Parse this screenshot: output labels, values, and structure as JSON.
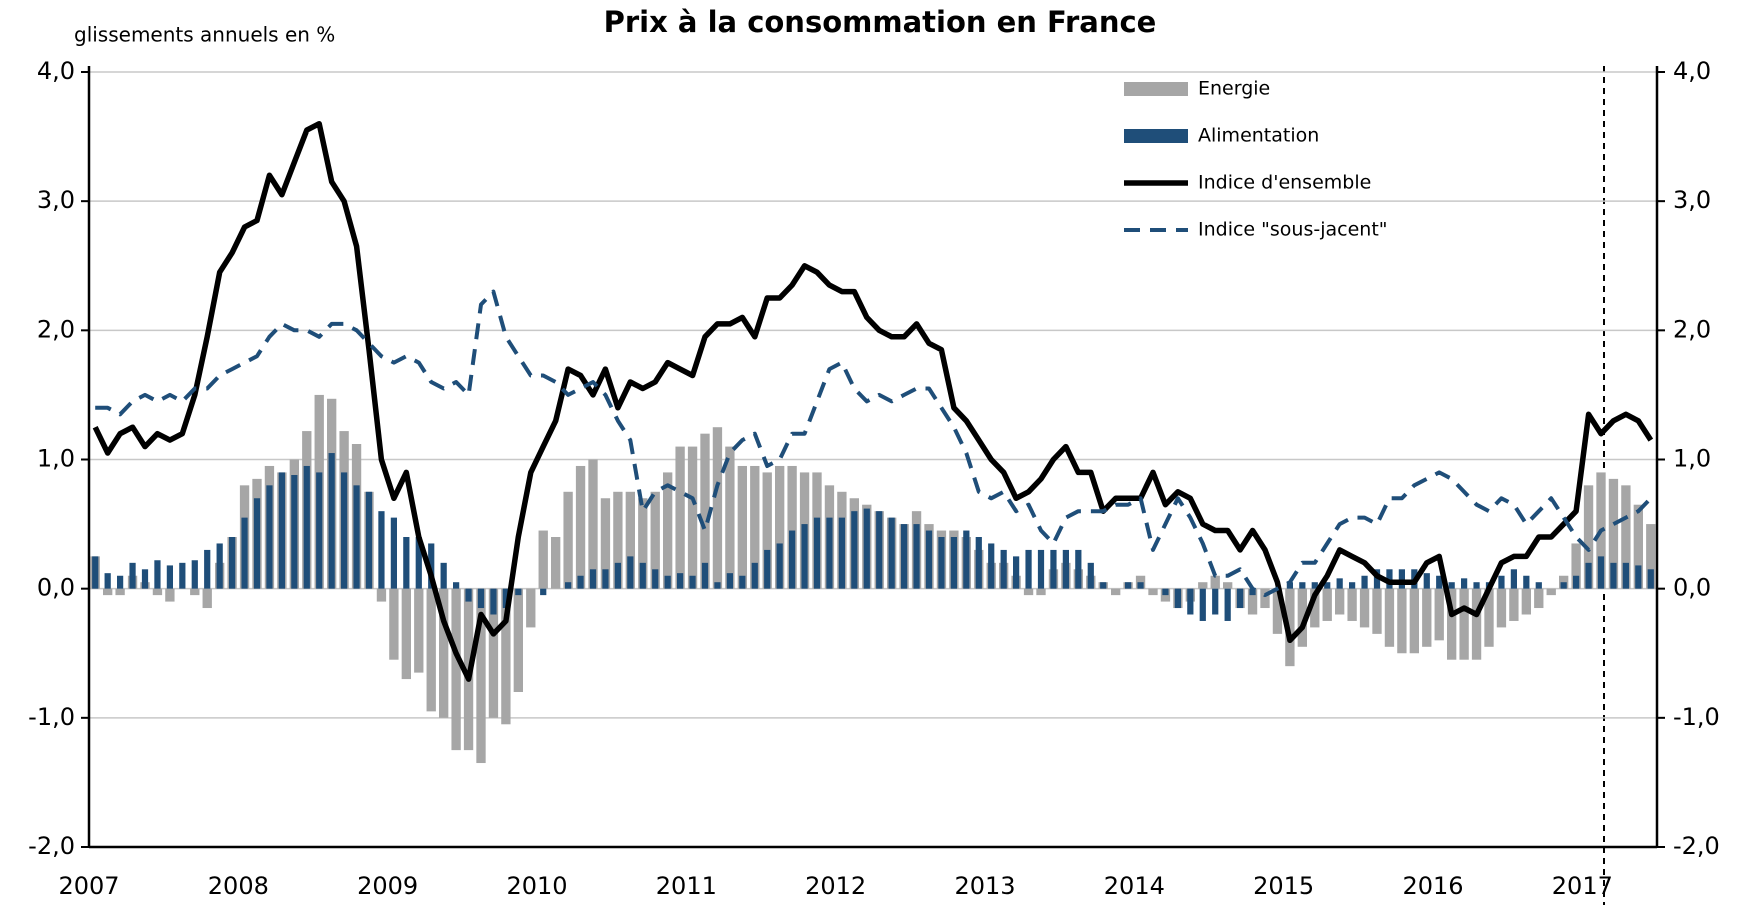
{
  "chart_data": {
    "type": "bar-line",
    "title": "Prix à la consommation en France",
    "y_label": "glissements annuels en %",
    "categories": [
      "2007",
      null,
      null,
      null,
      null,
      null,
      null,
      null,
      null,
      null,
      null,
      null,
      "2008",
      null,
      null,
      null,
      null,
      null,
      null,
      null,
      null,
      null,
      null,
      null,
      "2009",
      null,
      null,
      null,
      null,
      null,
      null,
      null,
      null,
      null,
      null,
      null,
      "2010",
      null,
      null,
      null,
      null,
      null,
      null,
      null,
      null,
      null,
      null,
      null,
      "2011",
      null,
      null,
      null,
      null,
      null,
      null,
      null,
      null,
      null,
      null,
      null,
      "2012",
      null,
      null,
      null,
      null,
      null,
      null,
      null,
      null,
      null,
      null,
      null,
      "2013",
      null,
      null,
      null,
      null,
      null,
      null,
      null,
      null,
      null,
      null,
      null,
      "2014",
      null,
      null,
      null,
      null,
      null,
      null,
      null,
      null,
      null,
      null,
      null,
      "2015",
      null,
      null,
      null,
      null,
      null,
      null,
      null,
      null,
      null,
      null,
      null,
      "2016",
      null,
      null,
      null,
      null,
      null,
      null,
      null,
      null,
      null,
      null,
      null,
      "2017",
      null,
      null,
      null,
      null,
      null
    ],
    "series": [
      {
        "name": "Energie",
        "type": "bar",
        "color": "#a6a6a6",
        "values": [
          0.25,
          -0.05,
          -0.05,
          0.1,
          0.05,
          -0.05,
          -0.1,
          0.0,
          -0.05,
          -0.15,
          0.2,
          0.4,
          0.8,
          0.85,
          0.95,
          0.9,
          1.0,
          1.22,
          1.5,
          1.47,
          1.22,
          1.12,
          0.75,
          -0.1,
          -0.55,
          -0.7,
          -0.65,
          -0.95,
          -1.0,
          -1.25,
          -1.25,
          -1.35,
          -1.0,
          -1.05,
          -0.8,
          -0.3,
          0.45,
          0.4,
          0.75,
          0.95,
          1.0,
          0.7,
          0.75,
          0.75,
          0.7,
          0.75,
          0.9,
          1.1,
          1.1,
          1.2,
          1.25,
          1.1,
          0.95,
          0.95,
          0.9,
          0.95,
          0.95,
          0.9,
          0.9,
          0.8,
          0.75,
          0.7,
          0.65,
          0.6,
          0.55,
          0.5,
          0.6,
          0.5,
          0.45,
          0.45,
          0.4,
          0.3,
          0.2,
          0.2,
          0.1,
          -0.05,
          -0.05,
          0.15,
          0.2,
          0.15,
          0.1,
          0.05,
          -0.05,
          0.05,
          0.1,
          -0.05,
          -0.1,
          -0.15,
          -0.1,
          0.05,
          0.1,
          0.05,
          -0.15,
          -0.2,
          -0.15,
          -0.35,
          -0.6,
          -0.45,
          -0.3,
          -0.25,
          -0.2,
          -0.25,
          -0.3,
          -0.35,
          -0.45,
          -0.5,
          -0.5,
          -0.45,
          -0.4,
          -0.55,
          -0.55,
          -0.55,
          -0.45,
          -0.3,
          -0.25,
          -0.2,
          -0.15,
          -0.05,
          0.1,
          0.35,
          0.8,
          0.9,
          0.85,
          0.8,
          0.65,
          0.5
        ]
      },
      {
        "name": "Alimentation",
        "type": "bar",
        "color": "#1f4e79",
        "values": [
          0.25,
          0.12,
          0.1,
          0.2,
          0.15,
          0.22,
          0.18,
          0.2,
          0.22,
          0.3,
          0.35,
          0.4,
          0.55,
          0.7,
          0.8,
          0.9,
          0.88,
          0.95,
          0.9,
          1.05,
          0.9,
          0.8,
          0.75,
          0.6,
          0.55,
          0.4,
          0.4,
          0.35,
          0.2,
          0.05,
          -0.1,
          -0.15,
          -0.2,
          -0.15,
          -0.05,
          0.0,
          -0.05,
          0.0,
          0.05,
          0.1,
          0.15,
          0.15,
          0.2,
          0.25,
          0.2,
          0.15,
          0.1,
          0.12,
          0.1,
          0.2,
          0.05,
          0.12,
          0.1,
          0.2,
          0.3,
          0.35,
          0.45,
          0.5,
          0.55,
          0.55,
          0.55,
          0.6,
          0.62,
          0.6,
          0.55,
          0.5,
          0.5,
          0.45,
          0.4,
          0.4,
          0.45,
          0.4,
          0.35,
          0.3,
          0.25,
          0.3,
          0.3,
          0.3,
          0.3,
          0.3,
          0.2,
          0.05,
          0.0,
          0.05,
          0.05,
          0.0,
          -0.05,
          -0.15,
          -0.2,
          -0.25,
          -0.2,
          -0.25,
          -0.15,
          -0.05,
          0.0,
          0.0,
          0.05,
          0.05,
          0.05,
          0.05,
          0.08,
          0.05,
          0.1,
          0.15,
          0.15,
          0.15,
          0.15,
          0.12,
          0.1,
          0.05,
          0.08,
          0.05,
          0.05,
          0.1,
          0.15,
          0.1,
          0.05,
          0.0,
          0.05,
          0.1,
          0.2,
          0.25,
          0.2,
          0.2,
          0.18,
          0.15
        ]
      },
      {
        "name": "Indice d'ensemble",
        "type": "line",
        "color": "#000000",
        "dashed": false,
        "values": [
          1.25,
          1.05,
          1.2,
          1.25,
          1.1,
          1.2,
          1.15,
          1.2,
          1.5,
          1.95,
          2.45,
          2.6,
          2.8,
          2.85,
          3.2,
          3.05,
          3.3,
          3.55,
          3.6,
          3.15,
          3.0,
          2.65,
          1.85,
          1.0,
          0.7,
          0.9,
          0.4,
          0.1,
          -0.25,
          -0.5,
          -0.7,
          -0.2,
          -0.35,
          -0.25,
          0.4,
          0.9,
          1.1,
          1.3,
          1.7,
          1.65,
          1.5,
          1.7,
          1.4,
          1.6,
          1.55,
          1.6,
          1.75,
          1.7,
          1.65,
          1.95,
          2.05,
          2.05,
          2.1,
          1.95,
          2.25,
          2.25,
          2.35,
          2.5,
          2.45,
          2.35,
          2.3,
          2.3,
          2.1,
          2.0,
          1.95,
          1.95,
          2.05,
          1.9,
          1.85,
          1.4,
          1.3,
          1.15,
          1.0,
          0.9,
          0.7,
          0.75,
          0.85,
          1.0,
          1.1,
          0.9,
          0.9,
          0.6,
          0.7,
          0.7,
          0.7,
          0.9,
          0.65,
          0.75,
          0.7,
          0.5,
          0.45,
          0.45,
          0.3,
          0.45,
          0.3,
          0.05,
          -0.4,
          -0.3,
          -0.05,
          0.1,
          0.3,
          0.25,
          0.2,
          0.1,
          0.05,
          0.05,
          0.05,
          0.2,
          0.25,
          -0.2,
          -0.15,
          -0.2,
          0.0,
          0.2,
          0.25,
          0.25,
          0.4,
          0.4,
          0.5,
          0.6,
          1.35,
          1.2,
          1.3,
          1.35,
          1.3,
          1.15
        ]
      },
      {
        "name": "Indice \"sous-jacent\"",
        "type": "line",
        "color": "#1f4e79",
        "dashed": true,
        "values": [
          1.4,
          1.4,
          1.35,
          1.45,
          1.5,
          1.45,
          1.5,
          1.45,
          1.55,
          1.55,
          1.65,
          1.7,
          1.75,
          1.8,
          1.95,
          2.05,
          2.0,
          2.0,
          1.95,
          2.05,
          2.05,
          2.0,
          1.9,
          1.8,
          1.75,
          1.8,
          1.75,
          1.6,
          1.55,
          1.6,
          1.5,
          2.2,
          2.3,
          1.95,
          1.8,
          1.65,
          1.65,
          1.6,
          1.5,
          1.55,
          1.6,
          1.5,
          1.3,
          1.15,
          0.6,
          0.75,
          0.8,
          0.75,
          0.7,
          0.45,
          0.8,
          1.05,
          1.15,
          1.2,
          0.95,
          1.0,
          1.2,
          1.2,
          1.45,
          1.7,
          1.75,
          1.55,
          1.45,
          1.5,
          1.45,
          1.5,
          1.55,
          1.55,
          1.4,
          1.25,
          1.05,
          0.75,
          0.7,
          0.75,
          0.6,
          0.65,
          0.45,
          0.35,
          0.55,
          0.6,
          0.6,
          0.6,
          0.65,
          0.65,
          0.7,
          0.3,
          0.5,
          0.7,
          0.55,
          0.35,
          0.1,
          0.1,
          0.15,
          0.0,
          -0.05,
          0.0,
          0.05,
          0.2,
          0.2,
          0.35,
          0.5,
          0.55,
          0.55,
          0.5,
          0.7,
          0.7,
          0.8,
          0.85,
          0.9,
          0.85,
          0.75,
          0.65,
          0.6,
          0.7,
          0.65,
          0.5,
          0.6,
          0.7,
          0.55,
          0.4,
          0.3,
          0.45,
          0.5,
          0.55,
          0.6,
          0.7
        ]
      }
    ],
    "ylim": [
      -2,
      4
    ],
    "yticks": [
      {
        "value": -2,
        "label": "-2,0"
      },
      {
        "value": -1,
        "label": "-1,0"
      },
      {
        "value": 0,
        "label": "0,0"
      },
      {
        "value": 1,
        "label": "1,0"
      },
      {
        "value": 2,
        "label": "2,0"
      },
      {
        "value": 3,
        "label": "3,0"
      },
      {
        "value": 4,
        "label": "4,0"
      }
    ],
    "grid": true,
    "legend": "top-right"
  }
}
